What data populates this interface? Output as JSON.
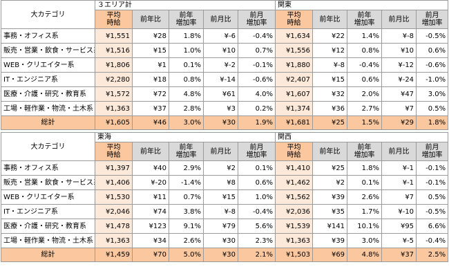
{
  "labels": {
    "category": "大カテゴリ",
    "avg_wage": "平均時給",
    "avg_wage_l1": "平均",
    "avg_wage_l2": "時給",
    "yoy": "前年比",
    "yoy_rate_l1": "前年",
    "yoy_rate_l2": "増加率",
    "mom": "前月比",
    "mom_rate_l1": "前月",
    "mom_rate_l2": "増加率",
    "total": "総計"
  },
  "tables": [
    {
      "regions": [
        "３エリア計",
        "関東"
      ],
      "rows": [
        {
          "category": "事務・オフィス系",
          "cells": [
            [
              "¥1,551",
              "¥28",
              "1.8%",
              "¥-6",
              "-0.4%"
            ],
            [
              "¥1,634",
              "¥22",
              "1.4%",
              "¥-8",
              "-0.5%"
            ]
          ]
        },
        {
          "category": "販売・営業・飲食・サービス系",
          "cells": [
            [
              "¥1,516",
              "¥15",
              "1.0%",
              "¥10",
              "0.7%"
            ],
            [
              "¥1,556",
              "¥12",
              "0.8%",
              "¥10",
              "0.6%"
            ]
          ]
        },
        {
          "category": "WEB・クリエイター系",
          "cells": [
            [
              "¥1,806",
              "¥1",
              "0.1%",
              "¥-2",
              "-0.1%"
            ],
            [
              "¥1,880",
              "¥-8",
              "-0.4%",
              "¥-12",
              "-0.6%"
            ]
          ]
        },
        {
          "category": "IT・エンジニア系",
          "cells": [
            [
              "¥2,280",
              "¥18",
              "0.8%",
              "¥-14",
              "-0.6%"
            ],
            [
              "¥2,407",
              "¥15",
              "0.6%",
              "¥-24",
              "-1.0%"
            ]
          ]
        },
        {
          "category": "医療・介護・研究・教育系",
          "cells": [
            [
              "¥1,572",
              "¥72",
              "4.8%",
              "¥61",
              "4.0%"
            ],
            [
              "¥1,607",
              "¥32",
              "2.0%",
              "¥47",
              "3.0%"
            ]
          ]
        },
        {
          "category": "工場・軽作業・物流・土木系",
          "cells": [
            [
              "¥1,363",
              "¥37",
              "2.8%",
              "¥3",
              "0.2%"
            ],
            [
              "¥1,374",
              "¥36",
              "2.7%",
              "¥7",
              "0.5%"
            ]
          ]
        }
      ],
      "total": [
        [
          "¥1,605",
          "¥46",
          "3.0%",
          "¥30",
          "1.9%"
        ],
        [
          "¥1,681",
          "¥25",
          "1.5%",
          "¥29",
          "1.8%"
        ]
      ]
    },
    {
      "regions": [
        "東海",
        "関西"
      ],
      "rows": [
        {
          "category": "事務・オフィス系",
          "cells": [
            [
              "¥1,397",
              "¥40",
              "2.9%",
              "¥2",
              "0.1%"
            ],
            [
              "¥1,410",
              "¥25",
              "1.8%",
              "¥-1",
              "-0.1%"
            ]
          ]
        },
        {
          "category": "販売・営業・飲食・サービス系",
          "cells": [
            [
              "¥1,406",
              "¥-20",
              "-1.4%",
              "¥8",
              "0.6%"
            ],
            [
              "¥1,462",
              "¥2",
              "0.1%",
              "¥-1",
              "-0.1%"
            ]
          ]
        },
        {
          "category": "WEB・クリエイター系",
          "cells": [
            [
              "¥1,530",
              "¥11",
              "0.7%",
              "¥15",
              "1.0%"
            ],
            [
              "¥1,562",
              "¥39",
              "2.6%",
              "¥7",
              "0.5%"
            ]
          ]
        },
        {
          "category": "IT・エンジニア系",
          "cells": [
            [
              "¥2,046",
              "¥74",
              "3.8%",
              "¥-8",
              "-0.4%"
            ],
            [
              "¥2,036",
              "¥35",
              "1.7%",
              "¥-10",
              "-0.5%"
            ]
          ]
        },
        {
          "category": "医療・介護・研究・教育系",
          "cells": [
            [
              "¥1,478",
              "¥123",
              "9.1%",
              "¥79",
              "5.6%"
            ],
            [
              "¥1,539",
              "¥141",
              "10.1%",
              "¥95",
              "6.6%"
            ]
          ]
        },
        {
          "category": "工場・軽作業・物流・土木系",
          "cells": [
            [
              "¥1,363",
              "¥34",
              "2.6%",
              "¥30",
              "2.3%"
            ],
            [
              "¥1,363",
              "¥39",
              "3.0%",
              "¥-5",
              "-0.4%"
            ]
          ]
        }
      ],
      "total": [
        [
          "¥1,459",
          "¥70",
          "5.0%",
          "¥30",
          "2.1%"
        ],
        [
          "¥1,503",
          "¥69",
          "4.8%",
          "¥37",
          "2.5%"
        ]
      ]
    }
  ]
}
